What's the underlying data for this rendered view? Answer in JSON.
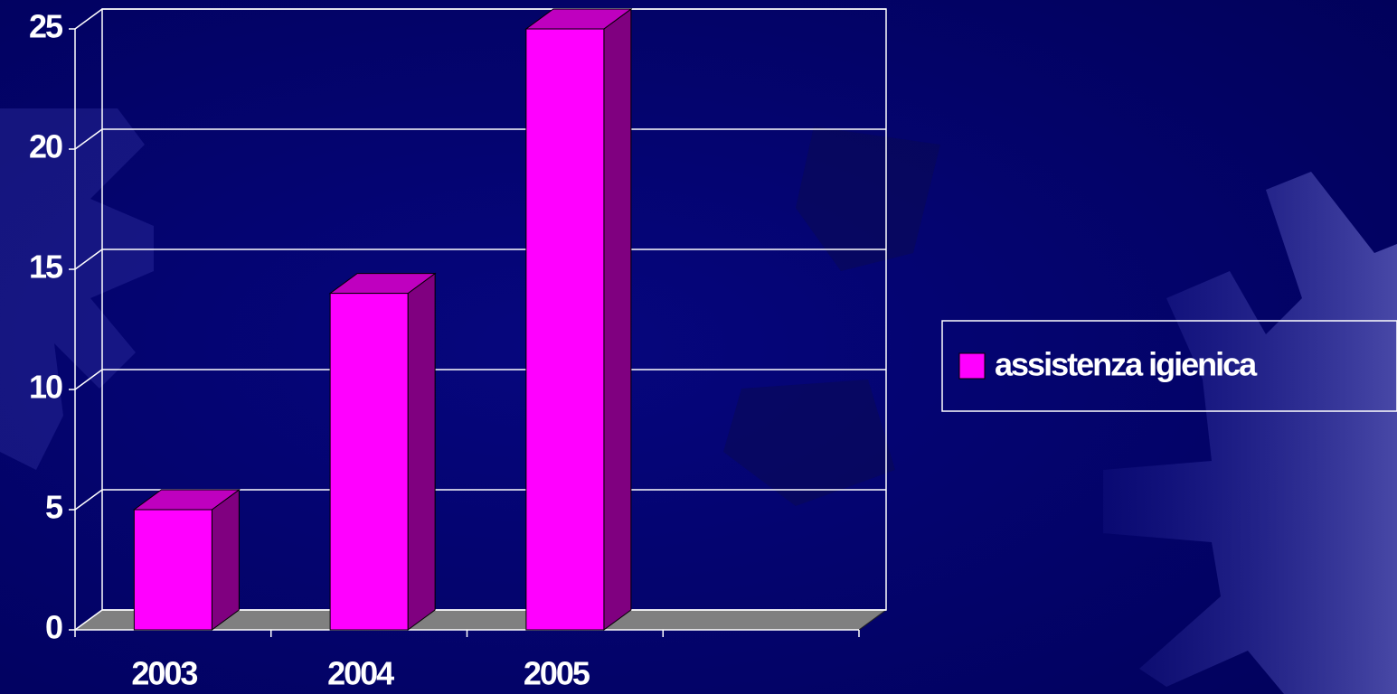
{
  "chart_data": {
    "type": "bar3d",
    "categories": [
      "2003",
      "2004",
      "2005",
      null
    ],
    "series": [
      {
        "name": "assistenza igienica",
        "color": "#ff00ff",
        "values": [
          5,
          14,
          25,
          null
        ]
      }
    ],
    "ylim": [
      0,
      25
    ],
    "yticks": [
      0,
      5,
      10,
      15,
      20,
      25
    ],
    "grid": true
  }
}
